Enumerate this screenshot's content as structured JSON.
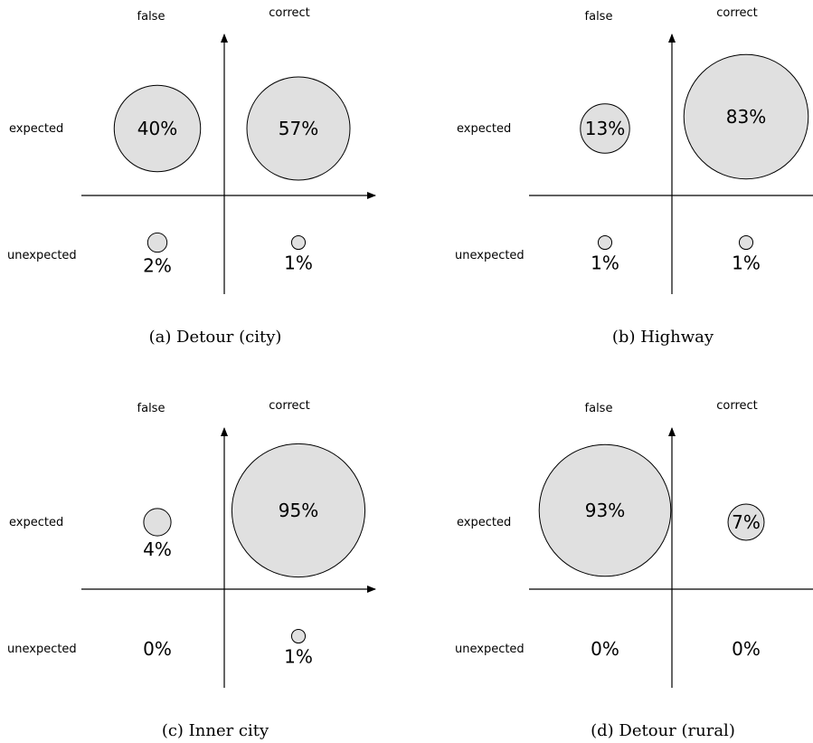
{
  "axis_labels": {
    "col_false": "false",
    "col_correct": "correct",
    "row_expected": "expected",
    "row_unexpected": "unexpected"
  },
  "bubble_fill": "#e0e0e0",
  "chart_data": [
    {
      "type": "bubble",
      "caption": "(a) Detour (city)",
      "columns": [
        "false",
        "correct"
      ],
      "rows": [
        "expected",
        "unexpected"
      ],
      "cells": [
        {
          "row": "expected",
          "col": "false",
          "value": 40,
          "label": "40%"
        },
        {
          "row": "expected",
          "col": "correct",
          "value": 57,
          "label": "57%"
        },
        {
          "row": "unexpected",
          "col": "false",
          "value": 2,
          "label": "2%"
        },
        {
          "row": "unexpected",
          "col": "correct",
          "value": 1,
          "label": "1%"
        }
      ]
    },
    {
      "type": "bubble",
      "caption": "(b) Highway",
      "columns": [
        "false",
        "correct"
      ],
      "rows": [
        "expected",
        "unexpected"
      ],
      "cells": [
        {
          "row": "expected",
          "col": "false",
          "value": 13,
          "label": "13%"
        },
        {
          "row": "expected",
          "col": "correct",
          "value": 83,
          "label": "83%"
        },
        {
          "row": "unexpected",
          "col": "false",
          "value": 1,
          "label": "1%"
        },
        {
          "row": "unexpected",
          "col": "correct",
          "value": 1,
          "label": "1%"
        }
      ]
    },
    {
      "type": "bubble",
      "caption": "(c) Inner city",
      "columns": [
        "false",
        "correct"
      ],
      "rows": [
        "expected",
        "unexpected"
      ],
      "cells": [
        {
          "row": "expected",
          "col": "false",
          "value": 4,
          "label": "4%"
        },
        {
          "row": "expected",
          "col": "correct",
          "value": 95,
          "label": "95%"
        },
        {
          "row": "unexpected",
          "col": "false",
          "value": 0,
          "label": "0%"
        },
        {
          "row": "unexpected",
          "col": "correct",
          "value": 1,
          "label": "1%"
        }
      ]
    },
    {
      "type": "bubble",
      "caption": "(d) Detour (rural)",
      "columns": [
        "false",
        "correct"
      ],
      "rows": [
        "expected",
        "unexpected"
      ],
      "cells": [
        {
          "row": "expected",
          "col": "false",
          "value": 93,
          "label": "93%"
        },
        {
          "row": "expected",
          "col": "correct",
          "value": 7,
          "label": "7%"
        },
        {
          "row": "unexpected",
          "col": "false",
          "value": 0,
          "label": "0%"
        },
        {
          "row": "unexpected",
          "col": "correct",
          "value": 0,
          "label": "0%"
        }
      ]
    }
  ]
}
